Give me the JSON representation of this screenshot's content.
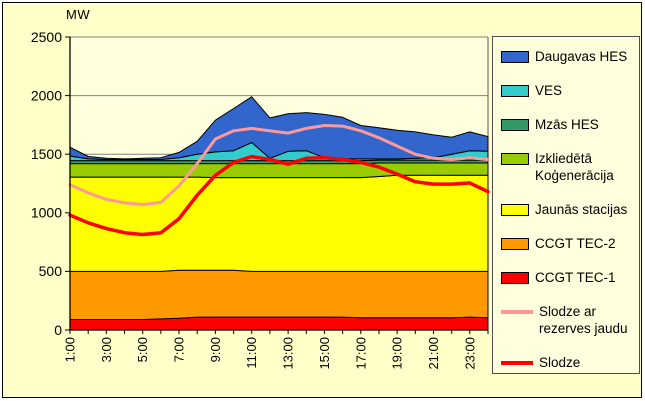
{
  "chart": {
    "y_axis_title": "MW",
    "colors": {
      "outer_bg": "#FFFFC9",
      "plot_bg": "#FFFFDE",
      "grid": "#808080",
      "axis": "#000000",
      "band_outline": "#000000"
    },
    "y_ticks": [
      0,
      500,
      1000,
      1500,
      2000,
      2500
    ],
    "x_labeled_ticks": [
      "1:00",
      "3:00",
      "5:00",
      "7:00",
      "9:00",
      "11:00",
      "13:00",
      "15:00",
      "17:00",
      "19:00",
      "21:00",
      "23:00"
    ]
  },
  "chart_data": {
    "type": "area",
    "stacked": true,
    "title": "",
    "xlabel": "",
    "ylabel": "MW",
    "ylim": [
      0,
      2500
    ],
    "grid": true,
    "legend_position": "right",
    "x": [
      "1:00",
      "2:00",
      "3:00",
      "4:00",
      "5:00",
      "6:00",
      "7:00",
      "8:00",
      "9:00",
      "10:00",
      "11:00",
      "12:00",
      "13:00",
      "14:00",
      "15:00",
      "16:00",
      "17:00",
      "18:00",
      "19:00",
      "20:00",
      "21:00",
      "22:00",
      "23:00",
      "24:00"
    ],
    "series": [
      {
        "name": "CCGT TEC-1",
        "color": "#FF0000",
        "values": [
          90,
          90,
          90,
          90,
          90,
          95,
          100,
          110,
          110,
          110,
          110,
          110,
          110,
          110,
          110,
          110,
          105,
          105,
          105,
          105,
          105,
          105,
          110,
          105
        ]
      },
      {
        "name": "CCGT TEC-2",
        "color": "#FF9900",
        "values": [
          410,
          410,
          410,
          410,
          410,
          405,
          410,
          400,
          400,
          400,
          390,
          390,
          390,
          390,
          390,
          390,
          395,
          395,
          395,
          395,
          395,
          395,
          390,
          395
        ]
      },
      {
        "name": "Jaunās stacijas",
        "color": "#FFFF00",
        "values": [
          805,
          805,
          805,
          805,
          805,
          805,
          795,
          795,
          790,
          790,
          800,
          800,
          800,
          800,
          800,
          800,
          800,
          810,
          820,
          820,
          820,
          820,
          820,
          820
        ]
      },
      {
        "name": "Izkliedētā Koģenerācija",
        "color": "#99CC00",
        "values": [
          115,
          115,
          115,
          115,
          115,
          115,
          115,
          115,
          120,
          120,
          120,
          120,
          120,
          120,
          120,
          120,
          120,
          115,
          105,
          105,
          105,
          105,
          105,
          105
        ]
      },
      {
        "name": "Mzās HES",
        "color": "#339966",
        "values": [
          25,
          25,
          25,
          25,
          25,
          25,
          25,
          25,
          25,
          25,
          25,
          25,
          25,
          25,
          25,
          25,
          25,
          25,
          25,
          25,
          25,
          25,
          25,
          25
        ]
      },
      {
        "name": "VES",
        "color": "#33CCCC",
        "values": [
          40,
          15,
          10,
          10,
          10,
          10,
          25,
          55,
          75,
          85,
          155,
          20,
          80,
          85,
          25,
          15,
          15,
          10,
          10,
          15,
          20,
          50,
          80,
          75
        ]
      },
      {
        "name": "Daugavas HES",
        "color": "#3366CC",
        "values": [
          75,
          20,
          10,
          5,
          10,
          15,
          45,
          110,
          270,
          360,
          390,
          345,
          320,
          325,
          370,
          355,
          285,
          265,
          245,
          225,
          195,
          145,
          160,
          125
        ]
      }
    ],
    "lines": [
      {
        "name": "Slodze ar rezerves jaudu",
        "color": "#FF9999",
        "width": 3,
        "values": [
          1240,
          1170,
          1115,
          1085,
          1070,
          1090,
          1230,
          1420,
          1630,
          1700,
          1720,
          1700,
          1680,
          1720,
          1745,
          1740,
          1700,
          1640,
          1570,
          1500,
          1465,
          1455,
          1470,
          1455
        ]
      },
      {
        "name": "Slodze",
        "color": "#FF0000",
        "width": 3.5,
        "values": [
          980,
          915,
          865,
          830,
          815,
          830,
          950,
          1150,
          1320,
          1430,
          1480,
          1455,
          1415,
          1465,
          1470,
          1455,
          1430,
          1390,
          1330,
          1265,
          1245,
          1245,
          1255,
          1180
        ]
      }
    ]
  },
  "legend": {
    "items": [
      {
        "label": "Daugavas HES",
        "type": "box",
        "color": "#3366CC"
      },
      {
        "label": "VES",
        "type": "box",
        "color": "#33CCCC"
      },
      {
        "label": "Mzās HES",
        "type": "box",
        "color": "#339966"
      },
      {
        "label": "Izkliedētā\nKoģenerācija",
        "type": "box",
        "color": "#99CC00"
      },
      {
        "label": "Jaunās stacijas",
        "type": "box",
        "color": "#FFFF00"
      },
      {
        "label": "CCGT TEC-2",
        "type": "box",
        "color": "#FF9900"
      },
      {
        "label": "CCGT TEC-1",
        "type": "box",
        "color": "#FF0000"
      },
      {
        "label": "Slodze ar\nrezerves jaudu",
        "type": "line",
        "color": "#FF9999"
      },
      {
        "label": "Slodze",
        "type": "line",
        "color": "#FF0000"
      }
    ]
  }
}
